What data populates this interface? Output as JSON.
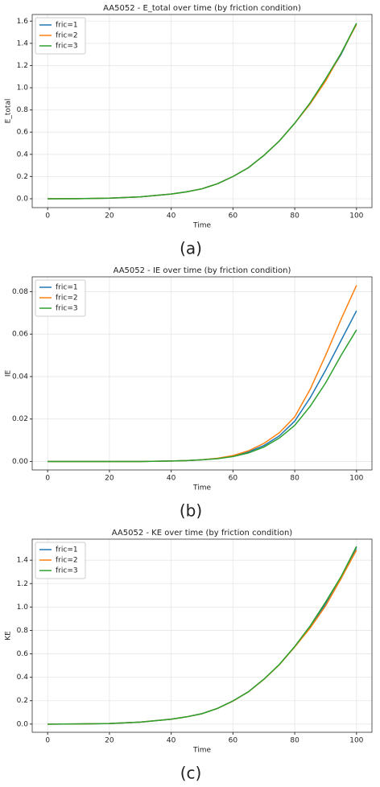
{
  "chart_data": [
    {
      "type": "line",
      "title": "AA5052 - E_total over time (by friction condition)",
      "x_label": "Time",
      "y_label": "E_total",
      "caption": "(a)",
      "x": [
        0,
        10,
        20,
        30,
        40,
        45,
        50,
        55,
        60,
        65,
        70,
        75,
        80,
        85,
        90,
        95,
        100
      ],
      "series": [
        {
          "name": "fric=1",
          "color": "#1f77b4",
          "values": [
            0,
            0.001,
            0.005,
            0.017,
            0.042,
            0.062,
            0.09,
            0.135,
            0.2,
            0.28,
            0.39,
            0.52,
            0.68,
            0.86,
            1.07,
            1.3,
            1.58
          ]
        },
        {
          "name": "fric=2",
          "color": "#ff7f0e",
          "values": [
            0,
            0.001,
            0.005,
            0.017,
            0.042,
            0.062,
            0.09,
            0.135,
            0.2,
            0.28,
            0.39,
            0.52,
            0.68,
            0.855,
            1.06,
            1.31,
            1.57
          ]
        },
        {
          "name": "fric=3",
          "color": "#2ca02c",
          "values": [
            0,
            0.001,
            0.005,
            0.017,
            0.042,
            0.062,
            0.09,
            0.135,
            0.2,
            0.28,
            0.39,
            0.52,
            0.68,
            0.865,
            1.08,
            1.31,
            1.58
          ]
        }
      ],
      "xlim": [
        -5,
        105
      ],
      "xticks": [
        0,
        20,
        40,
        60,
        80,
        100
      ],
      "ylim": [
        -0.08,
        1.66
      ],
      "yticks": [
        {
          "value": 0,
          "label": "0.0"
        },
        0.2,
        0.4,
        0.6,
        0.8,
        {
          "value": 1,
          "label": "1.0"
        },
        1.2,
        1.4,
        1.6
      ],
      "grid": true,
      "legend": "upper left"
    },
    {
      "type": "line",
      "title": "AA5052 - IE over time (by friction condition)",
      "x_label": "Time",
      "y_label": "IE",
      "caption": "(b)",
      "x": [
        0,
        10,
        20,
        30,
        40,
        45,
        50,
        55,
        60,
        65,
        70,
        75,
        80,
        85,
        90,
        95,
        100
      ],
      "series": [
        {
          "name": "fric=1",
          "color": "#1f77b4",
          "values": [
            0,
            0,
            0,
            0,
            0.0002,
            0.0004,
            0.0008,
            0.0014,
            0.0025,
            0.0045,
            0.0075,
            0.012,
            0.019,
            0.03,
            0.043,
            0.057,
            0.071
          ]
        },
        {
          "name": "fric=2",
          "color": "#ff7f0e",
          "values": [
            0,
            0,
            0,
            0,
            0.0002,
            0.0004,
            0.0008,
            0.0015,
            0.0028,
            0.005,
            0.0085,
            0.0135,
            0.021,
            0.034,
            0.05,
            0.067,
            0.083
          ]
        },
        {
          "name": "fric=3",
          "color": "#2ca02c",
          "values": [
            0,
            0,
            0,
            0,
            0.0002,
            0.0004,
            0.0008,
            0.0013,
            0.0023,
            0.004,
            0.0068,
            0.011,
            0.017,
            0.026,
            0.037,
            0.05,
            0.062
          ]
        }
      ],
      "xlim": [
        -5,
        105
      ],
      "xticks": [
        0,
        20,
        40,
        60,
        80,
        100
      ],
      "ylim": [
        -0.004,
        0.087
      ],
      "yticks": [
        {
          "value": 0,
          "label": "0.00"
        },
        0.02,
        0.04,
        0.06,
        0.08
      ],
      "grid": true,
      "legend": "upper left"
    },
    {
      "type": "line",
      "title": "AA5052 - KE over time (by friction condition)",
      "x_label": "Time",
      "y_label": "KE",
      "caption": "(c)",
      "x": [
        0,
        10,
        20,
        30,
        40,
        45,
        50,
        55,
        60,
        65,
        70,
        75,
        80,
        85,
        90,
        95,
        100
      ],
      "series": [
        {
          "name": "fric=1",
          "color": "#1f77b4",
          "values": [
            0,
            0.001,
            0.005,
            0.017,
            0.042,
            0.062,
            0.089,
            0.134,
            0.197,
            0.276,
            0.383,
            0.508,
            0.661,
            0.83,
            1.027,
            1.243,
            1.509
          ]
        },
        {
          "name": "fric=2",
          "color": "#ff7f0e",
          "values": [
            0,
            0.001,
            0.005,
            0.017,
            0.042,
            0.062,
            0.089,
            0.134,
            0.197,
            0.275,
            0.382,
            0.507,
            0.659,
            0.821,
            1.01,
            1.243,
            1.487
          ]
        },
        {
          "name": "fric=3",
          "color": "#2ca02c",
          "values": [
            0,
            0.001,
            0.005,
            0.017,
            0.042,
            0.062,
            0.089,
            0.134,
            0.198,
            0.276,
            0.383,
            0.509,
            0.663,
            0.839,
            1.043,
            1.26,
            1.518
          ]
        }
      ],
      "xlim": [
        -5,
        105
      ],
      "xticks": [
        0,
        20,
        40,
        60,
        80,
        100
      ],
      "ylim": [
        -0.07,
        1.58
      ],
      "yticks": [
        {
          "value": 0,
          "label": "0.0"
        },
        0.2,
        0.4,
        0.6,
        0.8,
        {
          "value": 1,
          "label": "1.0"
        },
        1.2,
        1.4
      ],
      "grid": true,
      "legend": "upper left"
    }
  ]
}
